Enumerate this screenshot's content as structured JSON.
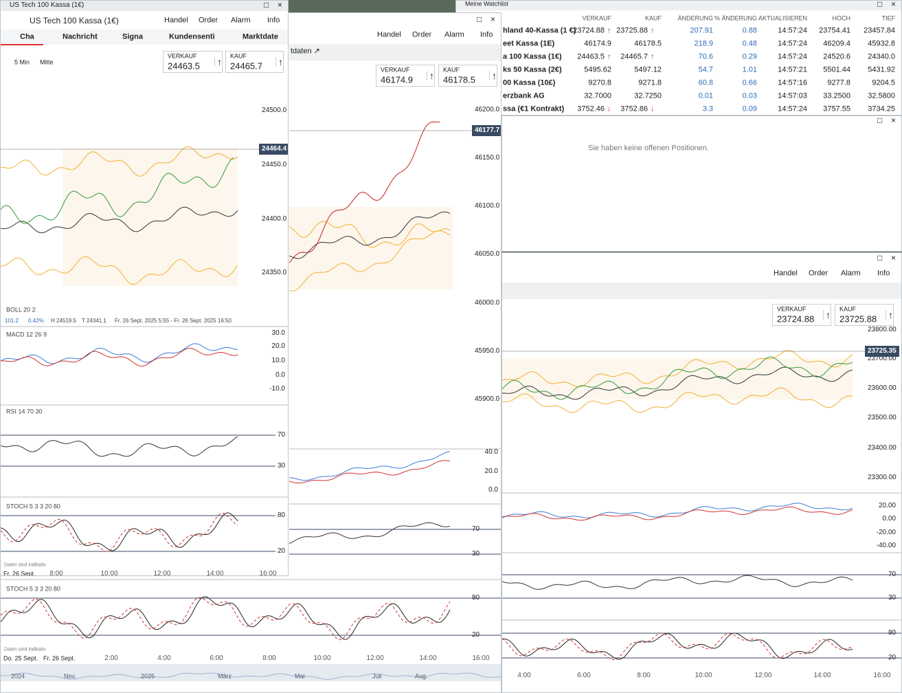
{
  "watchlist": {
    "tab": "Meine Watchlist",
    "headers": [
      "VERKAUF",
      "KAUF",
      "ÄNDERUNG",
      "% ÄNDERUNG",
      "AKTUALISIEREN",
      "HOCH",
      "TIEF"
    ],
    "rows": [
      {
        "name": "hland 40-Kassa (1 €)",
        "sell": "23724.88",
        "sell_arrow": "↑",
        "buy": "23725.88",
        "buy_arrow": "↑",
        "change": "207.91",
        "change_pct": "0.88",
        "updated": "14:57:24",
        "high": "23754.41",
        "low": "23457.84"
      },
      {
        "name": "eet Kassa (1E)",
        "sell": "46174.9",
        "buy": "46178.5",
        "change": "218.9",
        "change_pct": "0.48",
        "updated": "14:57:24",
        "high": "46209.4",
        "low": "45932.8"
      },
      {
        "name": "a 100 Kassa (1€)",
        "sell": "24463.5",
        "sell_arrow": "↑",
        "buy": "24465.7",
        "buy_arrow": "↑",
        "change": "70.6",
        "change_pct": "0.29",
        "updated": "14:57:24",
        "high": "24520.6",
        "low": "24340.0"
      },
      {
        "name": "ks 50 Kassa (2€)",
        "sell": "5495.62",
        "buy": "5497.12",
        "change": "54.7",
        "change_pct": "1.01",
        "updated": "14:57:21",
        "high": "5501.44",
        "low": "5431.92"
      },
      {
        "name": "00 Kassa (10£)",
        "sell": "9270.8",
        "buy": "9271.8",
        "change": "60.8",
        "change_pct": "0.66",
        "updated": "14:57:16",
        "high": "9277.8",
        "low": "9204.5"
      },
      {
        "name": "erzbank AG",
        "sell": "32.7000",
        "buy": "32.7250",
        "change": "0.01",
        "change_pct": "0.03",
        "updated": "14:57:03",
        "high": "33.2500",
        "low": "32.5800"
      },
      {
        "name": "ssa (€1 Kontrakt)",
        "sell": "3752.46",
        "sell_arrow": "↓",
        "buy": "3752.86",
        "buy_arrow": "↓",
        "change": "3.3",
        "change_pct": "0.09",
        "updated": "14:57:24",
        "high": "3757.55",
        "low": "3734.25"
      }
    ]
  },
  "positions": {
    "message": "Sie haben keine offenen Positionen."
  },
  "window_a": {
    "title": "US Tech 100 Kassa (1€)",
    "instrument": "US Tech 100 Kassa (1€)",
    "menu": [
      "Handel",
      "Order",
      "Alarm",
      "Info"
    ],
    "tabs": [
      "Cha",
      "Nachricht",
      "Signa",
      "Kundensenti",
      "Marktdate"
    ],
    "intervals": [
      "5 Min",
      "Mitte"
    ],
    "sell": {
      "label": "VERKAUF",
      "price": "24463.5"
    },
    "buy": {
      "label": "KAUF",
      "price": "24465.7"
    },
    "price_axis": [
      "24500.0",
      "24450.0",
      "24400.0",
      "24350.0"
    ],
    "last_price": "24464.4",
    "boll": {
      "label": "BOLL  20  2",
      "info": [
        "101.2",
        "0.42%",
        "H 24519.5",
        "T 24341.1",
        "Fr. 26 Sept. 2025 5:55 - Fr. 26 Sept. 2025 16:50"
      ]
    },
    "macd": {
      "label": "MACD  12  26  9",
      "axis": [
        "30.0",
        "20.0",
        "10.0",
        "0.0",
        "-10.0"
      ]
    },
    "rsi": {
      "label": "RSI  14  70  30",
      "axis": [
        "70",
        "30"
      ]
    },
    "stoch": {
      "label": "STOCH  5  3  3  20  80",
      "axis": [
        "80",
        "20"
      ]
    },
    "note": "Daten sind indikativ",
    "time_axis": [
      "Fr. 26 Sept.",
      "8:00",
      "10:00",
      "12:00",
      "14:00",
      "16:00"
    ]
  },
  "window_b": {
    "menu": [
      "Handel",
      "Order",
      "Alarm",
      "Info"
    ],
    "tab": "tdaten ↗",
    "sell": {
      "label": "VERKAUF",
      "price": "46174.9"
    },
    "buy": {
      "label": "KAUF",
      "price": "46178.5"
    },
    "price_axis": [
      "46200.0",
      "46150.0",
      "46100.0",
      "46050.0",
      "46000.0",
      "45950.0",
      "45900.0"
    ],
    "last_price": "46177.7",
    "macd_axis": [
      "40.0",
      "20.0",
      "0.0"
    ],
    "rsi_axis": [
      "70",
      "30"
    ],
    "stoch": {
      "label": "STOCH  5  3  3  20  80",
      "axis": [
        "80",
        "20"
      ]
    },
    "note": "Daten sind indikativ",
    "time_axis": [
      "Do. 25 Sept.",
      "Fr. 26 Sept.",
      "2:00",
      "4:00",
      "6:00",
      "8:00",
      "10:00",
      "12:00",
      "14:00",
      "16:00"
    ],
    "navigator": [
      "2024",
      "Nov.",
      "2025",
      "März",
      "Mai",
      "Juli",
      "Aug."
    ]
  },
  "window_d": {
    "menu": [
      "Handel",
      "Order",
      "Alarm",
      "Info"
    ],
    "sell": {
      "label": "VERKAUF",
      "price": "23724.88"
    },
    "buy": {
      "label": "KAUF",
      "price": "23725.88"
    },
    "price_axis": [
      "23800.00",
      "23700.00",
      "23600.00",
      "23500.00",
      "23400.00",
      "23300.00"
    ],
    "last_price": "23725.35",
    "macd_axis": [
      "20.00",
      "0.00",
      "-20.00",
      "-40.00"
    ],
    "rsi_axis": [
      "70",
      "30"
    ],
    "stoch_axis": [
      "80",
      "20"
    ],
    "time_axis": [
      "4:00",
      "6:00",
      "8:00",
      "10:00",
      "12:00",
      "14:00",
      "16:00"
    ]
  }
}
